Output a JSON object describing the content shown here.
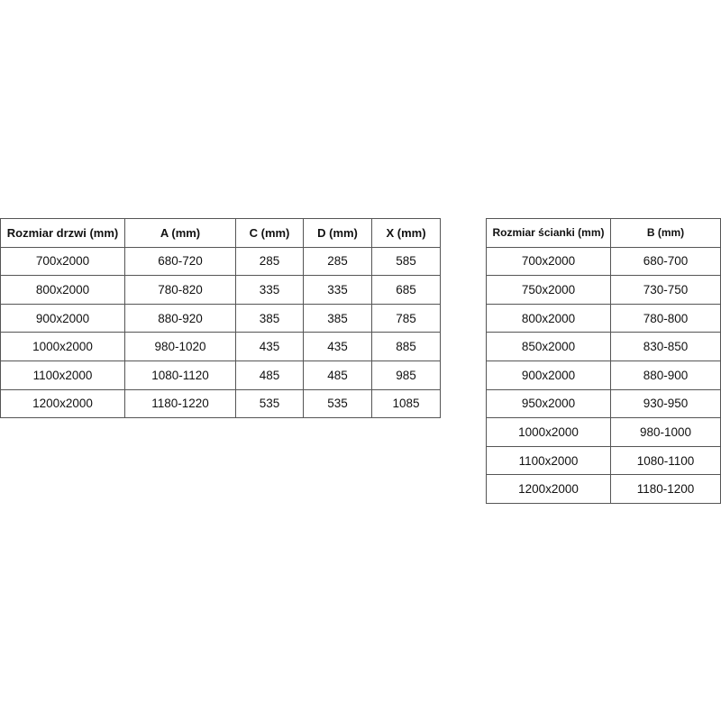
{
  "door_table": {
    "headers": [
      "Rozmiar drzwi (mm)",
      "A (mm)",
      "C (mm)",
      "D (mm)",
      "X (mm)"
    ],
    "rows": [
      [
        "700x2000",
        "680-720",
        "285",
        "285",
        "585"
      ],
      [
        "800x2000",
        "780-820",
        "335",
        "335",
        "685"
      ],
      [
        "900x2000",
        "880-920",
        "385",
        "385",
        "785"
      ],
      [
        "1000x2000",
        "980-1020",
        "435",
        "435",
        "885"
      ],
      [
        "1100x2000",
        "1080-1120",
        "485",
        "485",
        "985"
      ],
      [
        "1200x2000",
        "1180-1220",
        "535",
        "535",
        "1085"
      ]
    ]
  },
  "wall_table": {
    "headers": [
      "Rozmiar ścianki (mm)",
      "B (mm)"
    ],
    "rows": [
      [
        "700x2000",
        "680-700"
      ],
      [
        "750x2000",
        "730-750"
      ],
      [
        "800x2000",
        "780-800"
      ],
      [
        "850x2000",
        "830-850"
      ],
      [
        "900x2000",
        "880-900"
      ],
      [
        "950x2000",
        "930-950"
      ],
      [
        "1000x2000",
        "980-1000"
      ],
      [
        "1100x2000",
        "1080-1100"
      ],
      [
        "1200x2000",
        "1180-1200"
      ]
    ]
  }
}
